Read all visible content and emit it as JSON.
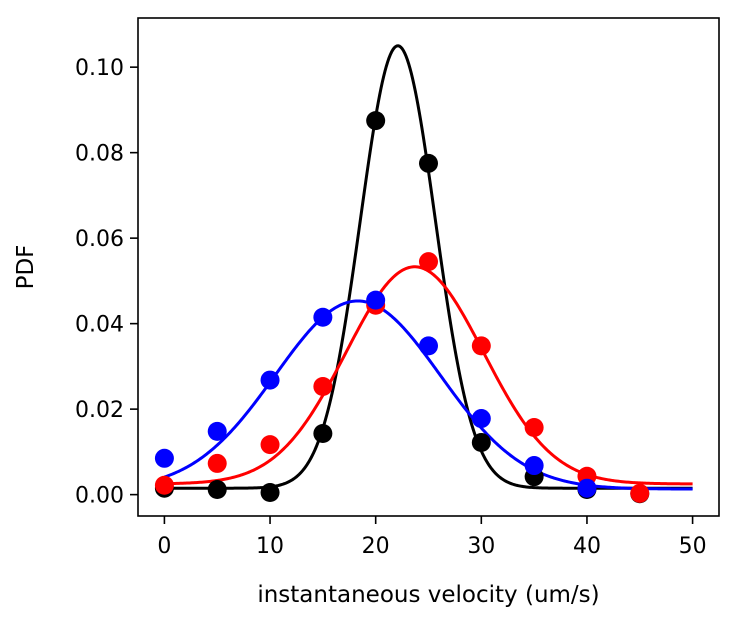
{
  "chart_data": {
    "type": "scatter",
    "title": "",
    "xlabel": "instantaneous velocity (um/s)",
    "ylabel": "PDF",
    "xlim": [
      -2.5,
      52.5
    ],
    "ylim": [
      -0.005,
      0.1115
    ],
    "xticks": [
      0,
      10,
      20,
      30,
      40,
      50
    ],
    "xtick_labels": [
      "0",
      "10",
      "20",
      "30",
      "40",
      "50"
    ],
    "yticks": [
      0.0,
      0.02,
      0.04,
      0.06,
      0.08,
      0.1
    ],
    "ytick_labels": [
      "0.00",
      "0.02",
      "0.04",
      "0.06",
      "0.08",
      "0.10"
    ],
    "grid": false,
    "legend": "none",
    "series": [
      {
        "color": "#000000",
        "points": {
          "x": [
            0,
            5,
            10,
            15,
            20,
            25,
            30,
            35,
            40,
            45
          ],
          "y": [
            0.0015,
            0.0012,
            0.0005,
            0.0143,
            0.0875,
            0.0775,
            0.0122,
            0.0042,
            0.0012,
            0.0002
          ]
        },
        "fit": {
          "mean": 22.1,
          "sigma": 3.55,
          "amplitude": 0.1035,
          "baseline": 0.0015
        }
      },
      {
        "color": "#ff0000",
        "points": {
          "x": [
            0,
            5,
            10,
            15,
            20,
            25,
            30,
            35,
            40,
            45
          ],
          "y": [
            0.0022,
            0.0073,
            0.0117,
            0.0253,
            0.0443,
            0.0545,
            0.0348,
            0.0157,
            0.0043,
            0.0003
          ]
        },
        "fit": {
          "mean": 23.7,
          "sigma": 6.5,
          "amplitude": 0.0508,
          "baseline": 0.0025
        }
      },
      {
        "color": "#0000ff",
        "points": {
          "x": [
            0,
            5,
            10,
            15,
            20,
            25,
            30,
            35,
            40
          ],
          "y": [
            0.0085,
            0.0148,
            0.0268,
            0.0415,
            0.0455,
            0.0348,
            0.0178,
            0.0068,
            0.0015
          ]
        },
        "fit": {
          "mean": 18.3,
          "sigma": 7.8,
          "amplitude": 0.044,
          "baseline": 0.0013
        }
      }
    ]
  }
}
